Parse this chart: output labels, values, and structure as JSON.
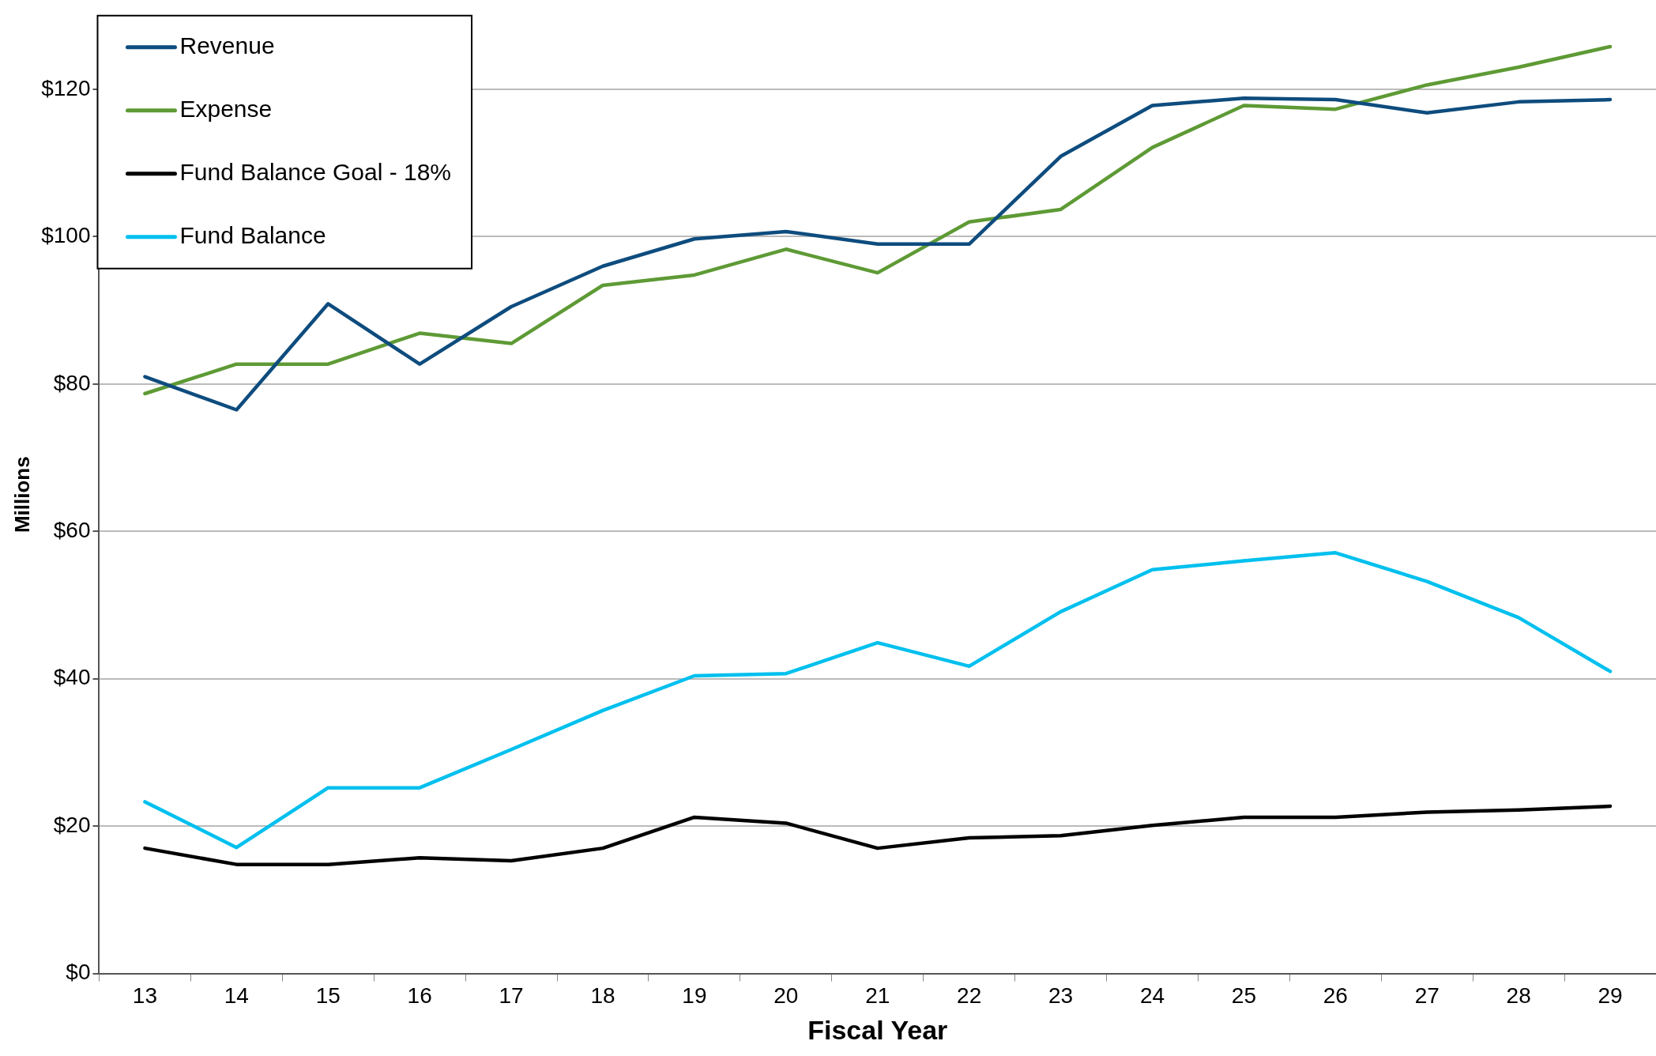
{
  "chart_data": {
    "type": "line",
    "xlabel": "Fiscal Year",
    "ylabel": "Millions",
    "categories": [
      "13",
      "14",
      "15",
      "16",
      "17",
      "18",
      "19",
      "20",
      "21",
      "22",
      "23",
      "24",
      "25",
      "26",
      "27",
      "28",
      "29"
    ],
    "series": [
      {
        "name": "Revenue",
        "color": "#0e4c7e",
        "values": [
          81.0,
          76.5,
          90.9,
          82.7,
          90.5,
          96.0,
          99.7,
          100.7,
          99.0,
          99.0,
          110.9,
          117.8,
          118.8,
          118.6,
          116.8,
          118.3,
          118.6
        ]
      },
      {
        "name": "Expense",
        "color": "#5e9a35",
        "values": [
          78.7,
          82.7,
          82.7,
          86.9,
          85.5,
          93.4,
          94.8,
          98.3,
          95.1,
          102.0,
          103.7,
          112.1,
          117.8,
          117.3,
          120.6,
          123.0,
          125.8
        ]
      },
      {
        "name": "Fund Balance Goal - 18%",
        "color": "#000000",
        "values": [
          17.0,
          14.8,
          14.8,
          15.7,
          15.3,
          17.0,
          21.2,
          20.4,
          17.0,
          18.4,
          18.7,
          20.1,
          21.2,
          21.2,
          21.9,
          22.2,
          22.7
        ]
      },
      {
        "name": "Fund Balance",
        "color": "#00c0ee",
        "values": [
          23.3,
          17.1,
          25.2,
          25.2,
          30.4,
          35.7,
          40.4,
          40.7,
          44.9,
          41.7,
          49.1,
          54.8,
          56.0,
          57.1,
          53.2,
          48.3,
          41.0
        ]
      }
    ],
    "ylim": [
      0,
      130
    ],
    "yticks": [
      {
        "value": 0,
        "label": "$0"
      },
      {
        "value": 20,
        "label": "$20"
      },
      {
        "value": 40,
        "label": "$40"
      },
      {
        "value": 60,
        "label": "$60"
      },
      {
        "value": 80,
        "label": "$80"
      },
      {
        "value": 100,
        "label": "$100"
      },
      {
        "value": 120,
        "label": "$120"
      }
    ],
    "grid": "y",
    "legend": "top left",
    "marker": "none",
    "line_style": "solid"
  }
}
